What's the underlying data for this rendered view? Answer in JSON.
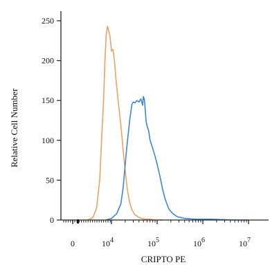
{
  "chart_data": {
    "type": "line",
    "xlabel": "CRIPTO PE",
    "ylabel": "Relative Cell Number",
    "ylim": [
      0,
      250
    ],
    "y_ticks": [
      0,
      50,
      100,
      150,
      200,
      250
    ],
    "x_scale": "log",
    "x_ticks": [
      {
        "label": "0",
        "value": 0
      },
      {
        "label": "10",
        "exp": "4",
        "value": 10000
      },
      {
        "label": "10",
        "exp": "5",
        "value": 100000
      },
      {
        "label": "10",
        "exp": "6",
        "value": 1000000
      },
      {
        "label": "10",
        "exp": "7",
        "value": 10000000
      }
    ],
    "grid": false,
    "colors": {
      "series_1": "#f0a060",
      "series_2": "#3a86d8",
      "axis": "#222222"
    },
    "series": [
      {
        "values_x": [
          1400,
          2500,
          3500,
          4500,
          5200,
          6000,
          6600,
          7200,
          7800,
          8500,
          9200,
          10000,
          10800,
          11600,
          12500,
          14000,
          16000,
          18000,
          20000,
          22000,
          25000,
          28000,
          32000,
          38000,
          45000,
          55000,
          70000,
          90000,
          110000,
          130000
        ],
        "values_y": [
          0,
          3,
          15,
          50,
          100,
          150,
          200,
          232,
          243,
          237,
          230,
          212,
          214,
          200,
          178,
          150,
          120,
          88,
          62,
          40,
          22,
          13,
          7,
          4,
          2,
          1,
          1,
          0,
          0,
          0
        ]
      },
      {
        "values_x": [
          7000,
          10000,
          13000,
          16000,
          18000,
          20000,
          22000,
          25000,
          28000,
          30000,
          33000,
          36000,
          40000,
          44000,
          48000,
          50000,
          53000,
          57000,
          60000,
          65000,
          70000,
          80000,
          90000,
          100000,
          115000,
          130000,
          150000,
          180000,
          220000,
          280000,
          400000,
          700000,
          1500000,
          5000000,
          10000000
        ],
        "values_y": [
          0,
          2,
          8,
          20,
          40,
          70,
          95,
          125,
          145,
          148,
          147,
          150,
          148,
          152,
          144,
          155,
          150,
          125,
          118,
          112,
          100,
          90,
          80,
          70,
          55,
          40,
          26,
          14,
          8,
          4,
          2,
          1,
          1,
          0,
          0
        ]
      }
    ]
  }
}
